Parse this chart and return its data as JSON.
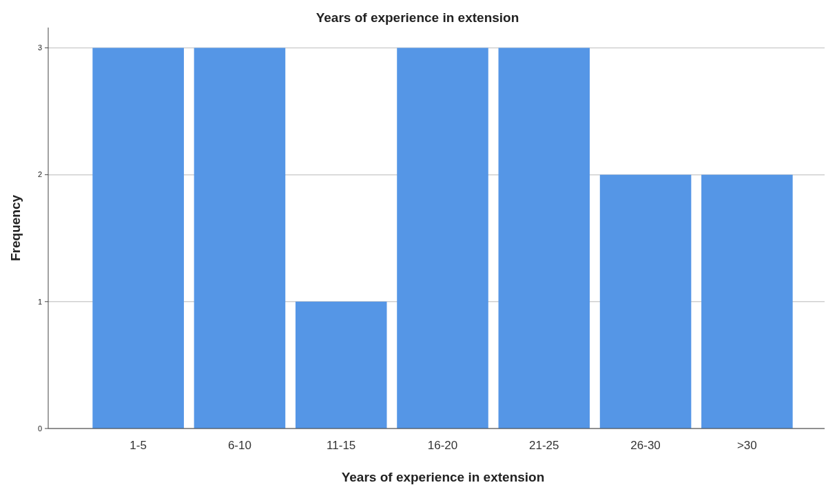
{
  "chart_data": {
    "type": "bar",
    "title": "Years of experience in extension",
    "xlabel": "Years of experience in extension",
    "ylabel": "Frequency",
    "categories": [
      "1-5",
      "6-10",
      "11-15",
      "16-20",
      "21-25",
      "26-30",
      ">30"
    ],
    "values": [
      3,
      3,
      1,
      3,
      3,
      2,
      2
    ],
    "color": "#5596e6",
    "ylim": [
      0,
      3.16
    ],
    "yticks": [
      0,
      1,
      2,
      3
    ],
    "grid": "y"
  }
}
